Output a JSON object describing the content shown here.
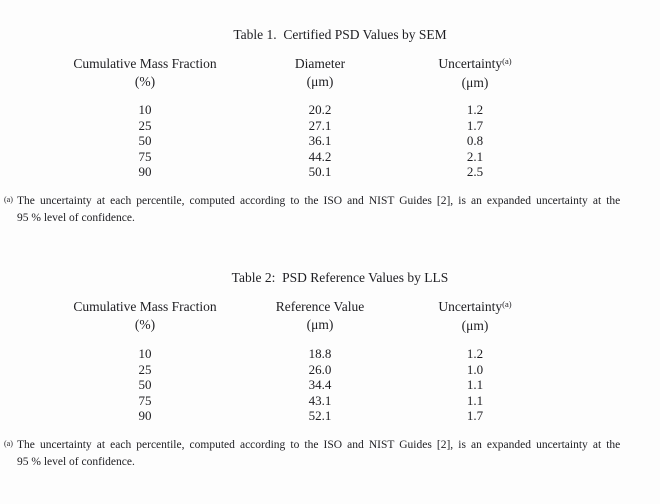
{
  "page": {
    "background": "#fdfdfd",
    "text_color": "#1e1e22"
  },
  "tables": [
    {
      "title": "Table 1.  Certified PSD Values by SEM",
      "columns": [
        {
          "line1": "Cumulative Mass Fraction",
          "line2": "(%)"
        },
        {
          "line1": "Diameter",
          "line2": "(μm)"
        },
        {
          "line1": "Uncertainty",
          "sup": "(a)",
          "line2": "(μm)"
        }
      ],
      "rows": [
        [
          "10",
          "20.2",
          "1.2"
        ],
        [
          "25",
          "27.1",
          "1.7"
        ],
        [
          "50",
          "36.1",
          "0.8"
        ],
        [
          "75",
          "44.2",
          "2.1"
        ],
        [
          "90",
          "50.1",
          "2.5"
        ]
      ],
      "footnote": {
        "marker": "(a)",
        "line1": "The uncertainty at each percentile, computed according to the ISO and NIST Guides [2], is an expanded uncertainty at the",
        "line2": "95 % level of confidence."
      }
    },
    {
      "title": "Table 2:  PSD Reference Values by LLS",
      "columns": [
        {
          "line1": "Cumulative Mass Fraction",
          "line2": "(%)"
        },
        {
          "line1": "Reference Value",
          "line2": "(μm)"
        },
        {
          "line1": "Uncertainty",
          "sup": "(a)",
          "line2": "(μm)"
        }
      ],
      "rows": [
        [
          "10",
          "18.8",
          "1.2"
        ],
        [
          "25",
          "26.0",
          "1.0"
        ],
        [
          "50",
          "34.4",
          "1.1"
        ],
        [
          "75",
          "43.1",
          "1.1"
        ],
        [
          "90",
          "52.1",
          "1.7"
        ]
      ],
      "footnote": {
        "marker": "(a)",
        "line1": "The uncertainty at each percentile, computed according to the ISO and NIST Guides [2], is an expanded uncertainty at the",
        "line2": "95 % level of confidence."
      }
    }
  ]
}
